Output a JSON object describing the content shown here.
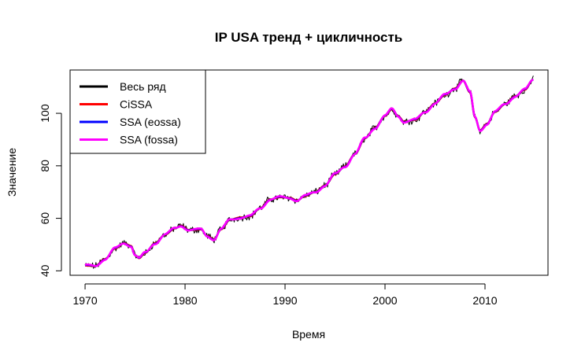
{
  "chart_data": {
    "type": "line",
    "title": "IP USA тренд + цикличность",
    "xlabel": "Время",
    "ylabel": "Значение",
    "xlim": [
      1968.5,
      2016.3
    ],
    "ylim": [
      38.3,
      116.5
    ],
    "x_ticks": [
      1970,
      1980,
      1990,
      2000,
      2010
    ],
    "y_ticks": [
      40,
      60,
      80,
      100
    ],
    "grid": false,
    "legend_position": "top-left",
    "anchors": [
      [
        1970.0,
        42.0
      ],
      [
        1971.0,
        41.8
      ],
      [
        1972.0,
        44.5
      ],
      [
        1973.0,
        48.5
      ],
      [
        1973.9,
        50.5
      ],
      [
        1974.6,
        49.5
      ],
      [
        1975.0,
        46.0
      ],
      [
        1975.4,
        44.8
      ],
      [
        1976.0,
        46.8
      ],
      [
        1977.0,
        50.5
      ],
      [
        1978.0,
        53.8
      ],
      [
        1979.0,
        56.2
      ],
      [
        1979.6,
        57.2
      ],
      [
        1980.4,
        55.5
      ],
      [
        1981.0,
        55.6
      ],
      [
        1981.6,
        55.8
      ],
      [
        1982.2,
        53.3
      ],
      [
        1982.9,
        52.0
      ],
      [
        1983.6,
        55.8
      ],
      [
        1984.5,
        59.5
      ],
      [
        1985.5,
        60.3
      ],
      [
        1986.5,
        60.8
      ],
      [
        1987.5,
        63.8
      ],
      [
        1988.5,
        67.2
      ],
      [
        1989.5,
        68.0
      ],
      [
        1990.5,
        67.8
      ],
      [
        1991.2,
        66.8
      ],
      [
        1992.0,
        68.5
      ],
      [
        1993.0,
        70.0
      ],
      [
        1994.0,
        72.5
      ],
      [
        1995.0,
        76.8
      ],
      [
        1996.0,
        79.8
      ],
      [
        1997.0,
        84.5
      ],
      [
        1998.0,
        90.5
      ],
      [
        1999.0,
        94.5
      ],
      [
        2000.0,
        99.0
      ],
      [
        2000.7,
        101.6
      ],
      [
        2001.3,
        99.0
      ],
      [
        2001.9,
        96.8
      ],
      [
        2003.0,
        97.5
      ],
      [
        2004.0,
        100.5
      ],
      [
        2005.0,
        103.8
      ],
      [
        2006.0,
        107.0
      ],
      [
        2007.0,
        109.5
      ],
      [
        2007.8,
        112.5
      ],
      [
        2008.5,
        108.0
      ],
      [
        2009.0,
        98.5
      ],
      [
        2009.5,
        93.5
      ],
      [
        2010.2,
        96.0
      ],
      [
        2011.0,
        100.5
      ],
      [
        2012.0,
        103.5
      ],
      [
        2013.0,
        106.5
      ],
      [
        2014.0,
        109.0
      ],
      [
        2014.8,
        112.8
      ]
    ],
    "noise_amplitude": 1.1,
    "series": [
      {
        "name": "Весь ряд",
        "color": "#000000",
        "line_width": 1,
        "style": "raw"
      },
      {
        "name": "CiSSA",
        "color": "#ff0000",
        "line_width": 2.5,
        "style": "smooth",
        "offset": 0.0
      },
      {
        "name": "SSA (eossa)",
        "color": "#0000ff",
        "line_width": 2.5,
        "style": "smooth",
        "offset": 0.25
      },
      {
        "name": "SSA (fossa)",
        "color": "#ff00ff",
        "line_width": 2.5,
        "style": "smooth",
        "offset": 0.45
      }
    ]
  }
}
